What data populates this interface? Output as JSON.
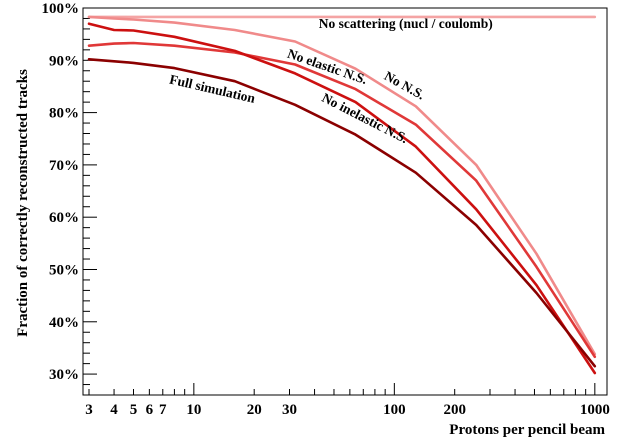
{
  "chart_data": {
    "type": "line",
    "xlabel": "Protons per pencil beam",
    "ylabel": "Fraction of correctly reconstructed tracks",
    "x_scale": "log",
    "xlim": [
      2.8,
      1150
    ],
    "ylim": [
      26,
      100
    ],
    "x_ticks": [
      3,
      4,
      5,
      6,
      7,
      10,
      20,
      30,
      100,
      200,
      1000
    ],
    "x_tick_labels": [
      "3",
      "4",
      "5",
      "6",
      "7",
      "10",
      "20",
      "30",
      "100",
      "200",
      "1000"
    ],
    "y_ticks": [
      30,
      40,
      50,
      60,
      70,
      80,
      90,
      100
    ],
    "y_tick_labels": [
      "30%",
      "40%",
      "50%",
      "60%",
      "70%",
      "80%",
      "90%",
      "100%"
    ],
    "grid": false,
    "legend": "none",
    "series": [
      {
        "name": "No scattering (nucl / coulomb)",
        "color": "#f4a4a4",
        "x": [
          3,
          4,
          5,
          8,
          16,
          32,
          64,
          128,
          256,
          512,
          1000
        ],
        "y": [
          98.3,
          98.3,
          98.3,
          98.3,
          98.3,
          98.3,
          98.3,
          98.3,
          98.3,
          98.3,
          98.3
        ]
      },
      {
        "name": "No N.S.",
        "color": "#f08a8a",
        "x": [
          3,
          4,
          5,
          8,
          16,
          32,
          64,
          128,
          256,
          512,
          1000
        ],
        "y": [
          98.3,
          98.0,
          97.8,
          97.2,
          95.8,
          93.6,
          88.4,
          81.2,
          70.0,
          53.0,
          33.8
        ]
      },
      {
        "name": "No elastic N.S.",
        "color": "#e03838",
        "x": [
          3,
          4,
          5,
          8,
          16,
          32,
          64,
          128,
          256,
          512,
          1000
        ],
        "y": [
          92.8,
          93.2,
          93.3,
          92.8,
          91.5,
          89.2,
          84.5,
          77.7,
          67.0,
          50.5,
          33.3
        ]
      },
      {
        "name": "No inelastic N.S.",
        "color": "#cc1010",
        "x": [
          3,
          4,
          5,
          8,
          16,
          32,
          64,
          128,
          256,
          512,
          1000
        ],
        "y": [
          97.0,
          95.8,
          95.7,
          94.5,
          91.8,
          87.5,
          82.0,
          73.5,
          61.5,
          47.0,
          30.2
        ]
      },
      {
        "name": "Full simulation",
        "color": "#8b0000",
        "x": [
          3,
          4,
          5,
          8,
          16,
          32,
          64,
          128,
          256,
          512,
          1000
        ],
        "y": [
          90.2,
          89.8,
          89.5,
          88.5,
          86.0,
          81.5,
          75.8,
          68.5,
          58.5,
          45.5,
          31.5
        ]
      }
    ],
    "annotations": [
      {
        "text": "No scattering (nucl / coulomb)",
        "x": 42,
        "y": 96.2,
        "angle": 0
      },
      {
        "text": "No elastic N.S.",
        "x": 29,
        "y": 90.6,
        "angle": 19
      },
      {
        "text": "No N.S.",
        "x": 88,
        "y": 86.5,
        "angle": 29
      },
      {
        "text": "Full simulation",
        "x": 7.5,
        "y": 85.6,
        "angle": 13
      },
      {
        "text": "No inelastic N.S.",
        "x": 43,
        "y": 82.3,
        "angle": 27
      }
    ]
  }
}
